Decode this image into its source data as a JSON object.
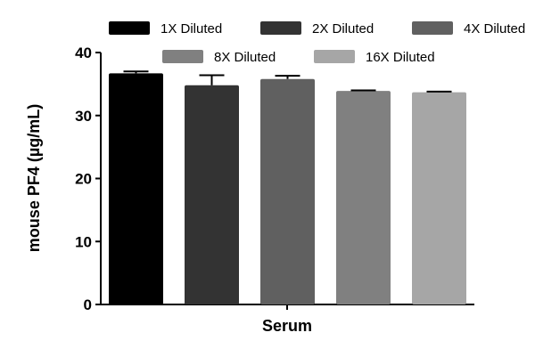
{
  "chart_data": {
    "type": "bar",
    "title": "",
    "xlabel": "Serum",
    "ylabel": "mouse PF4 (µg/mL)",
    "ylim": [
      0,
      40
    ],
    "yticks": [
      "0",
      "10",
      "20",
      "30",
      "40"
    ],
    "categories": [
      "Serum"
    ],
    "legend_placement": "top",
    "series": [
      {
        "name": "1X Diluted",
        "values": [
          36.7
        ],
        "error": [
          0.3
        ],
        "color": "#000000"
      },
      {
        "name": "2X Diluted",
        "values": [
          34.8
        ],
        "error": [
          1.6
        ],
        "color": "#333333"
      },
      {
        "name": "4X Diluted",
        "values": [
          35.8
        ],
        "error": [
          0.5
        ],
        "color": "#606060"
      },
      {
        "name": "8X Diluted",
        "values": [
          33.9
        ],
        "error": [
          0.1
        ],
        "color": "#808080"
      },
      {
        "name": "16X Diluted",
        "values": [
          33.7
        ],
        "error": [
          0.1
        ],
        "color": "#a6a6a6"
      }
    ]
  }
}
